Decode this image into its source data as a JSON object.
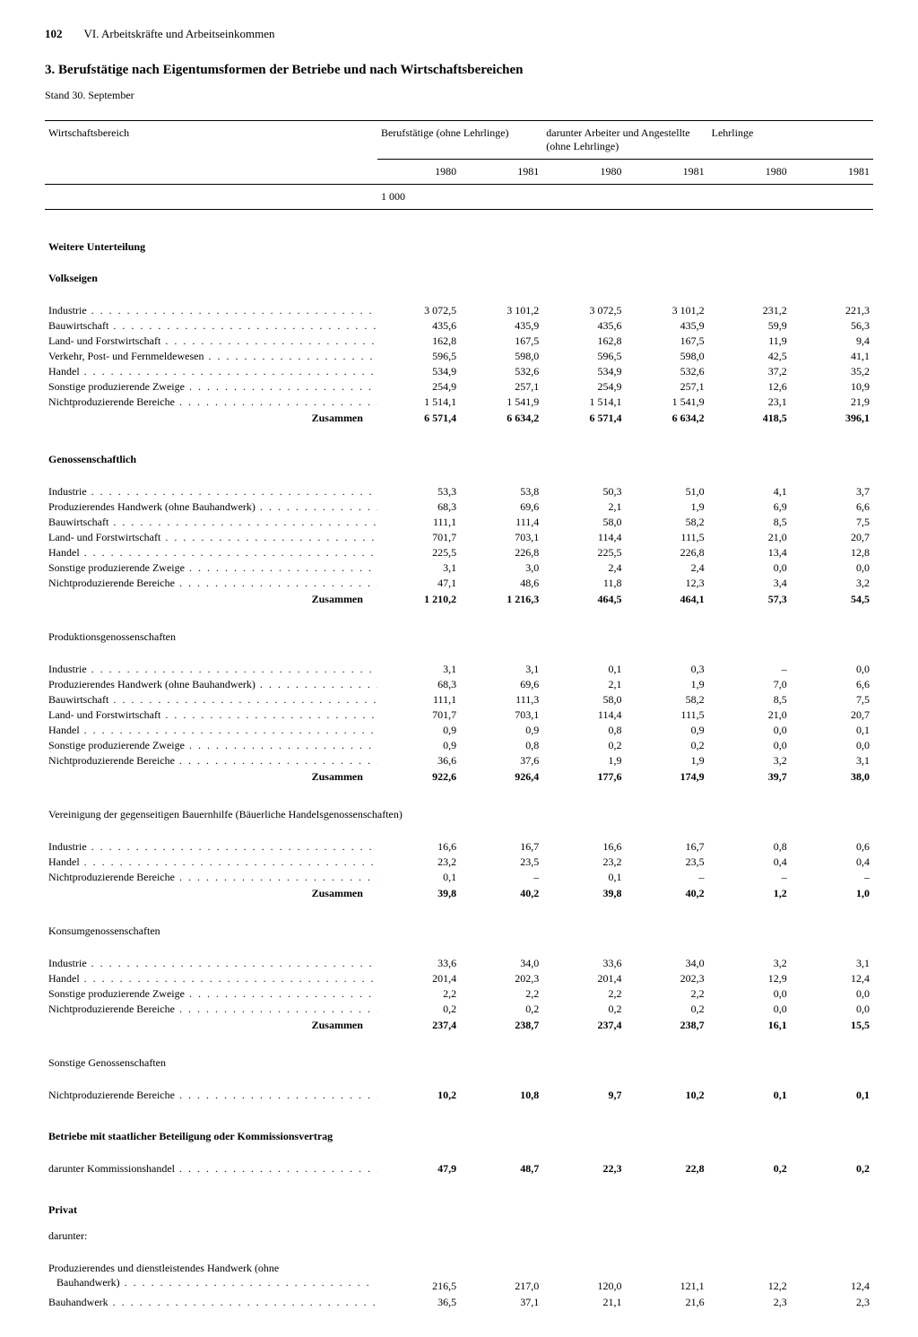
{
  "page_number": "102",
  "chapter": "VI. Arbeitskräfte und Arbeitseinkommen",
  "title": "3. Berufstätige nach Eigentumsformen der Betriebe und nach Wirtschaftsbereichen",
  "subtitle": "Stand 30. September",
  "columns": {
    "label": "Wirtschaftsbereich",
    "group1": "Berufstätige\n(ohne Lehrlinge)",
    "group2": "darunter Arbeiter\nund Angestellte\n(ohne Lehrlinge)",
    "group3": "Lehrlinge",
    "years": [
      "1980",
      "1981",
      "1980",
      "1981",
      "1980",
      "1981"
    ],
    "unit": "1 000"
  },
  "heading_further": "Weitere Unterteilung",
  "heading_volkseigen": "Volkseigen",
  "rows_volkseigen": [
    {
      "l": "Industrie",
      "v": [
        "3 072,5",
        "3 101,2",
        "3 072,5",
        "3 101,2",
        "231,2",
        "221,3"
      ]
    },
    {
      "l": "Bauwirtschaft",
      "v": [
        "435,6",
        "435,9",
        "435,6",
        "435,9",
        "59,9",
        "56,3"
      ]
    },
    {
      "l": "Land- und Forstwirtschaft",
      "v": [
        "162,8",
        "167,5",
        "162,8",
        "167,5",
        "11,9",
        "9,4"
      ]
    },
    {
      "l": "Verkehr, Post- und Fernmeldewesen",
      "v": [
        "596,5",
        "598,0",
        "596,5",
        "598,0",
        "42,5",
        "41,1"
      ]
    },
    {
      "l": "Handel",
      "v": [
        "534,9",
        "532,6",
        "534,9",
        "532,6",
        "37,2",
        "35,2"
      ]
    },
    {
      "l": "Sonstige produzierende Zweige",
      "v": [
        "254,9",
        "257,1",
        "254,9",
        "257,1",
        "12,6",
        "10,9"
      ]
    },
    {
      "l": "Nichtproduzierende Bereiche",
      "v": [
        "1 514,1",
        "1 541,9",
        "1 514,1",
        "1 541,9",
        "23,1",
        "21,9"
      ]
    }
  ],
  "total_volkseigen": {
    "l": "Zusammen",
    "v": [
      "6 571,4",
      "6 634,2",
      "6 571,4",
      "6 634,2",
      "418,5",
      "396,1"
    ]
  },
  "heading_genoss": "Genossenschaftlich",
  "rows_genoss": [
    {
      "l": "Industrie",
      "v": [
        "53,3",
        "53,8",
        "50,3",
        "51,0",
        "4,1",
        "3,7"
      ]
    },
    {
      "l": "Produzierendes Handwerk (ohne Bauhandwerk)",
      "v": [
        "68,3",
        "69,6",
        "2,1",
        "1,9",
        "6,9",
        "6,6"
      ]
    },
    {
      "l": "Bauwirtschaft",
      "v": [
        "111,1",
        "111,4",
        "58,0",
        "58,2",
        "8,5",
        "7,5"
      ]
    },
    {
      "l": "Land- und Forstwirtschaft",
      "v": [
        "701,7",
        "703,1",
        "114,4",
        "111,5",
        "21,0",
        "20,7"
      ]
    },
    {
      "l": "Handel",
      "v": [
        "225,5",
        "226,8",
        "225,5",
        "226,8",
        "13,4",
        "12,8"
      ]
    },
    {
      "l": "Sonstige produzierende Zweige",
      "v": [
        "3,1",
        "3,0",
        "2,4",
        "2,4",
        "0,0",
        "0,0"
      ]
    },
    {
      "l": "Nichtproduzierende Bereiche",
      "v": [
        "47,1",
        "48,6",
        "11,8",
        "12,3",
        "3,4",
        "3,2"
      ]
    }
  ],
  "total_genoss": {
    "l": "Zusammen",
    "v": [
      "1 210,2",
      "1 216,3",
      "464,5",
      "464,1",
      "57,3",
      "54,5"
    ]
  },
  "heading_prodgen": "Produktionsgenossenschaften",
  "rows_prodgen": [
    {
      "l": "Industrie",
      "v": [
        "3,1",
        "3,1",
        "0,1",
        "0,3",
        "–",
        "0,0"
      ]
    },
    {
      "l": "Produzierendes Handwerk (ohne Bauhandwerk)",
      "v": [
        "68,3",
        "69,6",
        "2,1",
        "1,9",
        "7,0",
        "6,6"
      ]
    },
    {
      "l": "Bauwirtschaft",
      "v": [
        "111,1",
        "111,3",
        "58,0",
        "58,2",
        "8,5",
        "7,5"
      ]
    },
    {
      "l": "Land- und Forstwirtschaft",
      "v": [
        "701,7",
        "703,1",
        "114,4",
        "111,5",
        "21,0",
        "20,7"
      ]
    },
    {
      "l": "Handel",
      "v": [
        "0,9",
        "0,9",
        "0,8",
        "0,9",
        "0,0",
        "0,1"
      ]
    },
    {
      "l": "Sonstige produzierende Zweige",
      "v": [
        "0,9",
        "0,8",
        "0,2",
        "0,2",
        "0,0",
        "0,0"
      ]
    },
    {
      "l": "Nichtproduzierende Bereiche",
      "v": [
        "36,6",
        "37,6",
        "1,9",
        "1,9",
        "3,2",
        "3,1"
      ]
    }
  ],
  "total_prodgen": {
    "l": "Zusammen",
    "v": [
      "922,6",
      "926,4",
      "177,6",
      "174,9",
      "39,7",
      "38,0"
    ]
  },
  "heading_bauern": "Vereinigung der gegenseitigen Bauernhilfe (Bäuerliche Handelsgenossenschaften)",
  "rows_bauern": [
    {
      "l": "Industrie",
      "v": [
        "16,6",
        "16,7",
        "16,6",
        "16,7",
        "0,8",
        "0,6"
      ]
    },
    {
      "l": "Handel",
      "v": [
        "23,2",
        "23,5",
        "23,2",
        "23,5",
        "0,4",
        "0,4"
      ]
    },
    {
      "l": "Nichtproduzierende Bereiche",
      "v": [
        "0,1",
        "–",
        "0,1",
        "–",
        "–",
        "–"
      ]
    }
  ],
  "total_bauern": {
    "l": "Zusammen",
    "v": [
      "39,8",
      "40,2",
      "39,8",
      "40,2",
      "1,2",
      "1,0"
    ]
  },
  "heading_konsum": "Konsumgenossenschaften",
  "rows_konsum": [
    {
      "l": "Industrie",
      "v": [
        "33,6",
        "34,0",
        "33,6",
        "34,0",
        "3,2",
        "3,1"
      ]
    },
    {
      "l": "Handel",
      "v": [
        "201,4",
        "202,3",
        "201,4",
        "202,3",
        "12,9",
        "12,4"
      ]
    },
    {
      "l": "Sonstige produzierende Zweige",
      "v": [
        "2,2",
        "2,2",
        "2,2",
        "2,2",
        "0,0",
        "0,0"
      ]
    },
    {
      "l": "Nichtproduzierende Bereiche",
      "v": [
        "0,2",
        "0,2",
        "0,2",
        "0,2",
        "0,0",
        "0,0"
      ]
    }
  ],
  "total_konsum": {
    "l": "Zusammen",
    "v": [
      "237,4",
      "238,7",
      "237,4",
      "238,7",
      "16,1",
      "15,5"
    ]
  },
  "heading_sonst": "Sonstige Genossenschaften",
  "row_sonst": {
    "l": "Nichtproduzierende Bereiche",
    "v": [
      "10,2",
      "10,8",
      "9,7",
      "10,2",
      "0,1",
      "0,1"
    ]
  },
  "heading_staatl": "Betriebe mit staatlicher Beteiligung oder Kommissionsvertrag",
  "row_staatl": {
    "l": "darunter Kommissionshandel",
    "v": [
      "47,9",
      "48,7",
      "22,3",
      "22,8",
      "0,2",
      "0,2"
    ]
  },
  "heading_privat": "Privat",
  "heading_darunter": "darunter:",
  "rows_privat": [
    {
      "l": "Produzierendes und dienstleistendes Handwerk (ohne\n  Bauhandwerk)",
      "v": [
        "216,5",
        "217,0",
        "120,0",
        "121,1",
        "12,2",
        "12,4"
      ]
    },
    {
      "l": "Bauhandwerk",
      "v": [
        "36,5",
        "37,1",
        "21,1",
        "21,6",
        "2,3",
        "2,3"
      ]
    }
  ]
}
